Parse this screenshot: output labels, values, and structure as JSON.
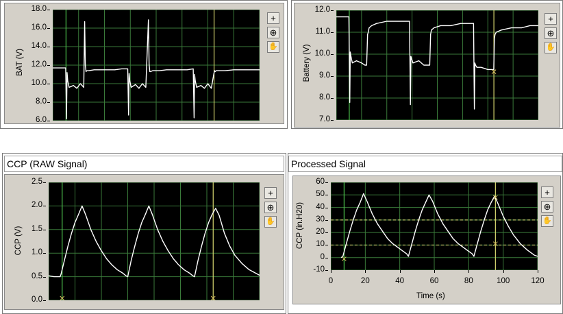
{
  "charts": [
    {
      "id": "bat",
      "title": "",
      "chart_data": {
        "type": "line",
        "ylabel": "BAT (V)",
        "xlabel": "",
        "ylim": [
          6.0,
          18.0
        ],
        "yticks": [
          "18.0",
          "16.0",
          "14.0",
          "12.0",
          "10.0",
          "8.0",
          "6.0"
        ],
        "xticks": [],
        "x_range": [
          0,
          120
        ],
        "grid": true,
        "series": [
          {
            "values_x": [
              0,
              7.5,
              8.0,
              8.3,
              8.7,
              9.5,
              12,
              14,
              16,
              18,
              18.5,
              18.9,
              19.3,
              19.8,
              21,
              24,
              28,
              32,
              36,
              40,
              43.5,
              44.0,
              44.3,
              44.7,
              45.5,
              48,
              50,
              52,
              54,
              55.5,
              55.9,
              56.3,
              56.8,
              58,
              62,
              66,
              70,
              74,
              78,
              81.5,
              82.0,
              82.3,
              82.7,
              83.5,
              86,
              88,
              90,
              92,
              93.5,
              93.9,
              94.3,
              94.8,
              96,
              100,
              105,
              110,
              115,
              120
            ],
            "values_y": [
              11.7,
              11.7,
              6.2,
              11.2,
              10.3,
              9.6,
              9.8,
              9.5,
              10.0,
              9.6,
              16.7,
              12.0,
              11.3,
              11.4,
              11.4,
              11.5,
              11.5,
              11.5,
              11.5,
              11.6,
              11.6,
              6.6,
              11.1,
              10.3,
              9.6,
              9.9,
              9.5,
              10.0,
              9.6,
              16.9,
              12.1,
              11.3,
              11.3,
              11.4,
              11.4,
              11.5,
              11.5,
              11.5,
              11.5,
              11.6,
              6.3,
              11.0,
              10.3,
              9.6,
              9.8,
              9.5,
              10.0,
              9.5,
              11.1,
              11.4,
              11.3,
              11.4,
              11.4,
              11.4,
              11.5,
              11.5,
              11.5,
              11.5
            ]
          }
        ],
        "cursors_x": [
          7.7,
          93.6
        ],
        "cursor_marks": []
      }
    },
    {
      "id": "battery",
      "title": "",
      "chart_data": {
        "type": "line",
        "ylabel": "Battery (V)",
        "xlabel": "",
        "ylim": [
          7.0,
          12.0
        ],
        "yticks": [
          "12.0",
          "11.0",
          "10.0",
          "9.0",
          "8.0",
          "7.0"
        ],
        "xticks": [],
        "x_range": [
          0,
          120
        ],
        "grid": true,
        "series": [
          {
            "values_x": [
              0,
              7.5,
              8.0,
              8.3,
              8.7,
              9.5,
              12,
              15,
              17,
              18,
              18.6,
              19.0,
              19.5,
              21,
              24,
              30,
              36,
              40,
              43.5,
              44.0,
              44.3,
              44.7,
              45.5,
              49,
              52,
              54,
              55.5,
              56.0,
              56.5,
              58,
              62,
              68,
              74,
              78,
              81.5,
              82.0,
              82.3,
              82.7,
              83.5,
              86,
              90,
              93.5,
              93.9,
              94.3,
              95,
              98,
              104,
              110,
              115,
              120
            ],
            "values_y": [
              11.7,
              11.7,
              7.8,
              10.1,
              9.9,
              9.6,
              9.7,
              9.6,
              9.5,
              9.5,
              10.9,
              11.0,
              11.2,
              11.3,
              11.4,
              11.5,
              11.5,
              11.5,
              11.5,
              7.7,
              9.9,
              9.8,
              9.6,
              9.7,
              9.5,
              9.5,
              9.5,
              10.9,
              11.1,
              11.2,
              11.3,
              11.3,
              11.4,
              11.4,
              11.4,
              7.5,
              9.6,
              9.5,
              9.4,
              9.4,
              9.3,
              9.3,
              10.7,
              10.9,
              11.0,
              11.1,
              11.2,
              11.2,
              11.3,
              11.3
            ]
          }
        ],
        "cursors_x": [
          7.7,
          93.6
        ],
        "cursor_marks": [
          {
            "x": 93.6,
            "y": 9.2
          }
        ]
      }
    },
    {
      "id": "ccp",
      "title": "CCP (RAW Signal)",
      "chart_data": {
        "type": "line",
        "ylabel": "CCP (V)",
        "xlabel": "",
        "ylim": [
          0.0,
          2.5
        ],
        "yticks": [
          "2.5",
          "2.0",
          "1.5",
          "1.0",
          "0.5",
          "0.0"
        ],
        "xticks": [],
        "x_range": [
          0,
          120
        ],
        "grid": true,
        "series": [
          {
            "values_x": [
              0,
              3,
              6.5,
              7,
              9,
              11,
              13,
              15,
              17,
              19,
              21,
              24,
              27,
              30,
              33,
              36,
              39,
              42,
              44,
              45,
              47,
              49,
              51,
              53,
              55,
              57,
              59,
              62,
              65,
              68,
              71,
              74,
              77,
              80,
              82,
              83,
              85,
              87,
              89,
              91,
              93,
              95,
              97,
              100,
              103,
              106,
              110,
              114,
              118,
              120
            ],
            "values_y": [
              0.52,
              0.5,
              0.5,
              0.55,
              0.85,
              1.15,
              1.42,
              1.65,
              1.82,
              2.0,
              1.82,
              1.5,
              1.25,
              1.05,
              0.88,
              0.75,
              0.65,
              0.58,
              0.52,
              0.5,
              0.85,
              1.15,
              1.42,
              1.65,
              1.82,
              2.0,
              1.82,
              1.5,
              1.25,
              1.05,
              0.88,
              0.75,
              0.65,
              0.58,
              0.52,
              0.5,
              0.85,
              1.15,
              1.42,
              1.65,
              1.82,
              1.95,
              1.8,
              1.42,
              1.15,
              0.95,
              0.78,
              0.65,
              0.57,
              0.53
            ]
          }
        ],
        "cursors_x": [
          7.7,
          93.6
        ],
        "cursor_marks": [
          {
            "x": 7.7,
            "y": 0.0
          },
          {
            "x": 93.6,
            "y": 0.0
          }
        ]
      }
    },
    {
      "id": "processed",
      "title": "Processed Signal",
      "chart_data": {
        "type": "line",
        "ylabel": "CCP (in.H20)",
        "xlabel": "Time (s)",
        "ylim": [
          -10,
          60
        ],
        "yticks": [
          "60",
          "50",
          "40",
          "30",
          "20",
          "10",
          "0",
          "-10"
        ],
        "xticks": [
          "0",
          "20",
          "40",
          "60",
          "80",
          "100",
          "120"
        ],
        "x_range": [
          0,
          120
        ],
        "grid": true,
        "series": [
          {
            "values_x": [
              6,
              7,
              9,
              11,
              13,
              15,
              17,
              19,
              21,
              24,
              27,
              30,
              33,
              36,
              39,
              42,
              44,
              45,
              47,
              49,
              51,
              53,
              55,
              57,
              59,
              62,
              65,
              68,
              71,
              74,
              77,
              80,
              82,
              83,
              85,
              87,
              89,
              91,
              93,
              95,
              97,
              100,
              103,
              106,
              110,
              114,
              118,
              120
            ],
            "values_y": [
              0,
              1,
              11,
              21,
              30,
              38,
              44,
              51,
              45,
              35,
              27,
              21,
              15,
              11,
              8,
              5,
              3,
              1,
              11,
              21,
              30,
              38,
              44,
              50,
              45,
              35,
              27,
              21,
              15,
              11,
              8,
              5,
              3,
              1,
              11,
              21,
              30,
              38,
              44,
              49,
              43,
              33,
              25,
              18,
              11,
              6,
              2,
              1
            ]
          }
        ],
        "cursors_x": [
          7.7,
          95.5
        ],
        "cursor_marks": [
          {
            "x": 7.7,
            "y": -1
          },
          {
            "x": 95.5,
            "y": 11
          },
          {
            "x": 95.5,
            "y": 48
          }
        ],
        "dashed_levels": [
          30,
          10
        ]
      }
    }
  ],
  "colors": {
    "plot_bg": "#000000",
    "trace": "#ffffff",
    "grid": "#3a7a3a",
    "cursor_left": "#4cc24c",
    "cursor_right": "#d8d870",
    "marker": "#d8c060",
    "dashed_level": "#e6e07a",
    "panel_bg": "#d4d0c8"
  },
  "tools": [
    {
      "name": "cursor-tool",
      "glyph": "+"
    },
    {
      "name": "zoom-tool",
      "glyph": "⊕"
    },
    {
      "name": "pan-tool",
      "glyph": "✋"
    }
  ]
}
